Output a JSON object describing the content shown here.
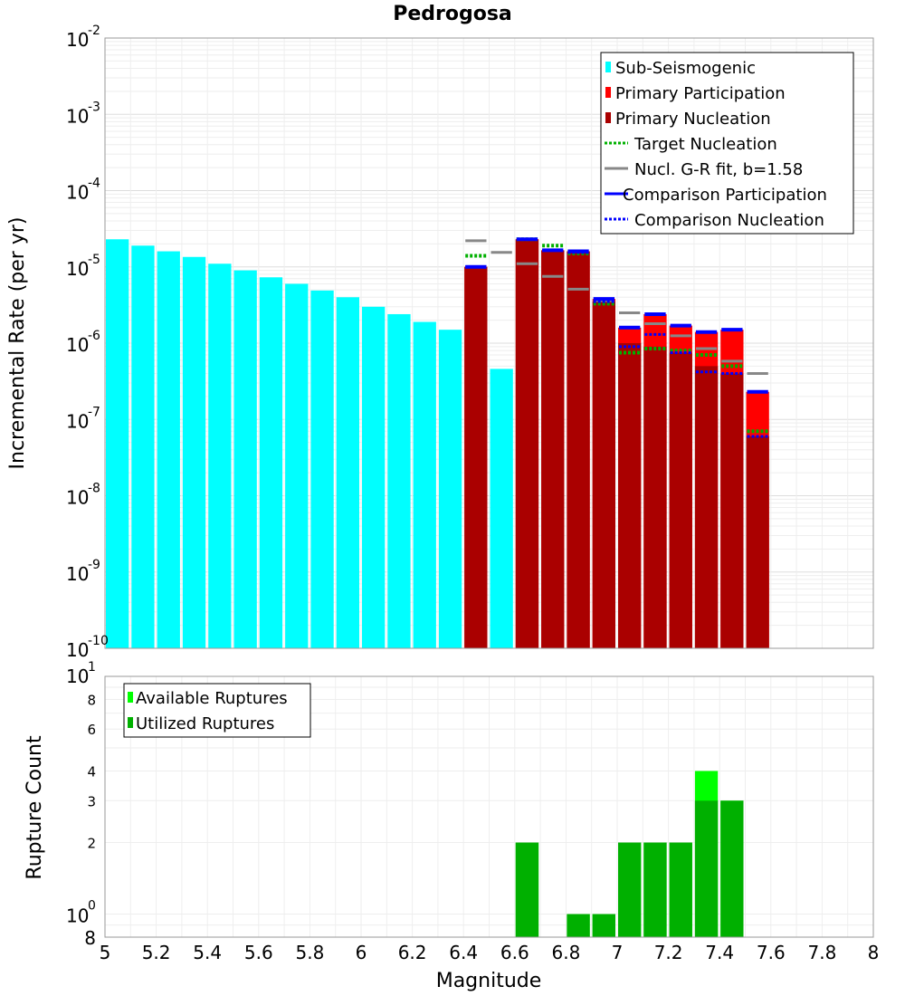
{
  "chart_data": [
    {
      "type": "bar",
      "panel": "rate",
      "title": "Pedrogosa",
      "xlabel": "Magnitude",
      "ylabel": "Incremental Rate (per yr)",
      "xlim": [
        5,
        8
      ],
      "ylim": [
        1e-10,
        0.01
      ],
      "yscale": "log",
      "grid": true,
      "legend_position": "top-right",
      "y_tick_exponents": [
        "-2",
        "-3",
        "-4",
        "-5",
        "-6",
        "-7",
        "-8",
        "-9",
        "-10"
      ],
      "y_tick_base": "10",
      "legend": [
        {
          "label": "Sub-Seismogenic",
          "color": "#00ffff",
          "style": "bar"
        },
        {
          "label": "Primary Participation",
          "color": "#ff0000",
          "style": "bar"
        },
        {
          "label": "Primary Nucleation",
          "color": "#aa0000",
          "style": "bar"
        },
        {
          "label": "Target Nucleation",
          "color": "#00b000",
          "style": "dotted"
        },
        {
          "label": "Nucl. G-R fit, b=1.58",
          "color": "#888888",
          "style": "line"
        },
        {
          "label": "Comparison Participation",
          "color": "#0000ff",
          "style": "line"
        },
        {
          "label": "Comparison Nucleation",
          "color": "#0000ff",
          "style": "dotted"
        }
      ],
      "series": [
        {
          "name": "Sub-Seismogenic",
          "color": "#00ffff",
          "x": [
            5.05,
            5.15,
            5.25,
            5.35,
            5.45,
            5.55,
            5.65,
            5.75,
            5.85,
            5.95,
            6.05,
            6.15,
            6.25,
            6.35,
            6.55
          ],
          "values": [
            2.3e-05,
            1.9e-05,
            1.6e-05,
            1.35e-05,
            1.1e-05,
            9e-06,
            7.3e-06,
            6e-06,
            4.9e-06,
            4e-06,
            3e-06,
            2.4e-06,
            1.9e-06,
            1.5e-06,
            4.6e-07
          ]
        },
        {
          "name": "Primary Participation",
          "color": "#ff0000",
          "x": [
            6.45,
            6.65,
            6.75,
            6.85,
            6.95,
            7.05,
            7.15,
            7.25,
            7.35,
            7.45,
            7.55
          ],
          "values": [
            1e-05,
            2.3e-05,
            1.65e-05,
            1.6e-05,
            3.8e-06,
            1.6e-06,
            2.4e-06,
            1.7e-06,
            1.4e-06,
            1.5e-06,
            2.3e-07
          ]
        },
        {
          "name": "Primary Nucleation",
          "color": "#aa0000",
          "x": [
            6.45,
            6.65,
            6.75,
            6.85,
            6.95,
            7.05,
            7.15,
            7.25,
            7.35,
            7.45,
            7.55
          ],
          "values": [
            1e-05,
            2.3e-05,
            1.65e-05,
            1.6e-05,
            3.5e-06,
            1e-06,
            9e-07,
            7.5e-07,
            5e-07,
            4e-07,
            6e-08
          ]
        },
        {
          "name": "Target Nucleation",
          "color": "#00b000",
          "x": [
            6.45,
            6.65,
            6.75,
            6.85,
            6.95,
            7.05,
            7.15,
            7.25,
            7.35,
            7.45,
            7.55
          ],
          "values": [
            1.4e-05,
            2.3e-05,
            1.9e-05,
            1.5e-05,
            3.3e-06,
            7.5e-07,
            8.5e-07,
            8e-07,
            7e-07,
            5e-07,
            7e-08
          ]
        },
        {
          "name": "Nucl. G-R fit, b=1.58",
          "color": "#888888",
          "x": [
            6.45,
            6.55,
            6.65,
            6.75,
            6.85,
            6.95,
            7.05,
            7.15,
            7.25,
            7.35,
            7.45,
            7.55
          ],
          "values": [
            2.2e-05,
            1.55e-05,
            1.1e-05,
            7.5e-06,
            5.1e-06,
            3.6e-06,
            2.5e-06,
            1.8e-06,
            1.25e-06,
            8.5e-07,
            5.8e-07,
            4e-07
          ]
        },
        {
          "name": "Comparison Participation",
          "color": "#0000ff",
          "x": [
            6.45,
            6.65,
            6.75,
            6.85,
            6.95,
            7.05,
            7.15,
            7.25,
            7.35,
            7.45,
            7.55
          ],
          "values": [
            1e-05,
            2.3e-05,
            1.65e-05,
            1.6e-05,
            3.8e-06,
            1.6e-06,
            2.4e-06,
            1.7e-06,
            1.4e-06,
            1.5e-06,
            2.3e-07
          ]
        },
        {
          "name": "Comparison Nucleation",
          "color": "#0000ff",
          "x": [
            6.45,
            6.65,
            6.75,
            6.85,
            6.95,
            7.05,
            7.15,
            7.25,
            7.35,
            7.45,
            7.55
          ],
          "values": [
            1e-05,
            2.3e-05,
            1.65e-05,
            1.55e-05,
            3.5e-06,
            9e-07,
            1.3e-06,
            7.5e-07,
            4.2e-07,
            4e-07,
            6e-08
          ]
        }
      ]
    },
    {
      "type": "bar",
      "panel": "count",
      "title": "",
      "xlabel": "Magnitude",
      "ylabel": "Rupture Count",
      "xlim": [
        5,
        8
      ],
      "ylim": [
        0.8,
        10
      ],
      "yscale": "log",
      "grid": true,
      "legend_position": "top-left",
      "x_ticks": [
        "5",
        "5.2",
        "5.4",
        "5.6",
        "5.8",
        "6",
        "6.2",
        "6.4",
        "6.6",
        "6.8",
        "7",
        "7.2",
        "7.4",
        "7.6",
        "7.8",
        "8"
      ],
      "y_ticks": [
        "8",
        "6",
        "4",
        "3",
        "2"
      ],
      "y_extra_ticks": {
        "top": "10",
        "top_exp": "1",
        "mid": "10",
        "mid_exp": "0",
        "bottom": "8"
      },
      "legend": [
        {
          "label": "Available Ruptures",
          "color": "#00ff00",
          "style": "bar"
        },
        {
          "label": "Utilized Ruptures",
          "color": "#00b000",
          "style": "bar"
        }
      ],
      "series": [
        {
          "name": "Available Ruptures",
          "color": "#00ff00",
          "x": [
            6.65,
            6.85,
            6.95,
            7.05,
            7.15,
            7.25,
            7.35,
            7.45
          ],
          "values": [
            2,
            1,
            1,
            2,
            2,
            2,
            4,
            3
          ]
        },
        {
          "name": "Utilized Ruptures",
          "color": "#00b000",
          "x": [
            6.65,
            6.85,
            6.95,
            7.05,
            7.15,
            7.25,
            7.35,
            7.45
          ],
          "values": [
            2,
            1,
            1,
            2,
            2,
            2,
            3,
            3
          ]
        }
      ]
    }
  ]
}
